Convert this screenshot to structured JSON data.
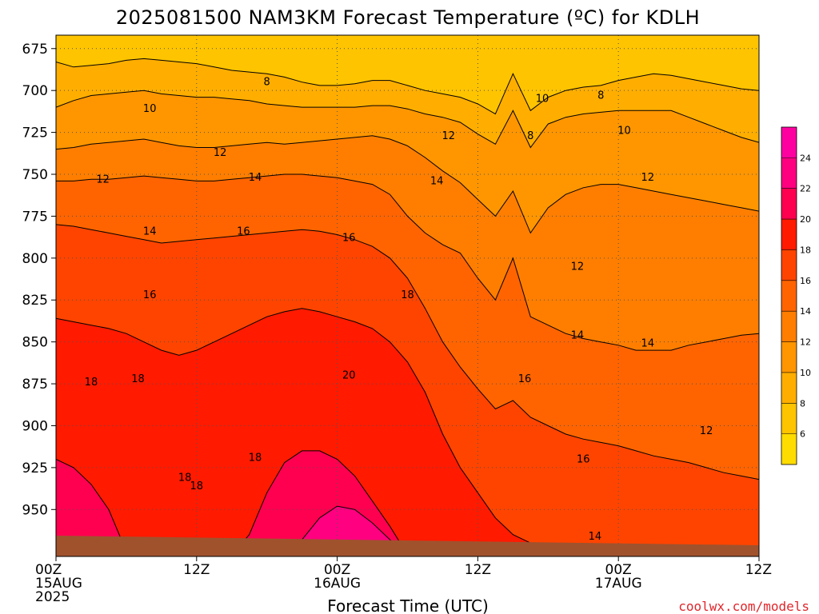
{
  "chart_data": {
    "type": "heatmap",
    "title": "2025081500 NAM3KM Forecast Temperature (ºC) for KDLH",
    "xlabel": "Forecast Time (UTC)",
    "ylabel": "",
    "x_ticks": [
      {
        "hour": 0,
        "lines": [
          "00Z",
          "15AUG",
          "2025"
        ]
      },
      {
        "hour": 12,
        "lines": [
          "12Z"
        ]
      },
      {
        "hour": 24,
        "lines": [
          "00Z",
          "16AUG"
        ]
      },
      {
        "hour": 36,
        "lines": [
          "12Z"
        ]
      },
      {
        "hour": 48,
        "lines": [
          "00Z",
          "17AUG"
        ]
      },
      {
        "hour": 60,
        "lines": [
          "12Z"
        ]
      }
    ],
    "xlim": [
      0,
      60
    ],
    "y_ticks": [
      675,
      700,
      725,
      750,
      775,
      800,
      825,
      850,
      875,
      900,
      925,
      950
    ],
    "ylim": [
      667,
      978
    ],
    "grid": "dotted",
    "colorbar": {
      "labels": [
        6,
        8,
        10,
        12,
        14,
        16,
        18,
        20,
        22,
        24
      ],
      "bins": [
        {
          "lo": 4,
          "hi": 6,
          "color": "#ffdc00"
        },
        {
          "lo": 6,
          "hi": 8,
          "color": "#ffc400"
        },
        {
          "lo": 8,
          "hi": 10,
          "color": "#ffae00"
        },
        {
          "lo": 10,
          "hi": 12,
          "color": "#ff9600"
        },
        {
          "lo": 12,
          "hi": 14,
          "color": "#ff7e00"
        },
        {
          "lo": 14,
          "hi": 16,
          "color": "#ff6400"
        },
        {
          "lo": 16,
          "hi": 18,
          "color": "#ff4400"
        },
        {
          "lo": 18,
          "hi": 20,
          "color": "#ff1a00"
        },
        {
          "lo": 20,
          "hi": 22,
          "color": "#ff0050"
        },
        {
          "lo": 22,
          "hi": 24,
          "color": "#ff0080"
        },
        {
          "lo": 24,
          "hi": 26,
          "color": "#ff00a0"
        }
      ]
    },
    "contours": [
      {
        "level": 8,
        "y": [
          683,
          686,
          685,
          684,
          682,
          681,
          682,
          683,
          684,
          686,
          688,
          689,
          690,
          692,
          695,
          697,
          697,
          696,
          694,
          694,
          697,
          700,
          702,
          704,
          708,
          714,
          690,
          712,
          704,
          700,
          698,
          697,
          694,
          692,
          690,
          691,
          693,
          695,
          697,
          699,
          700
        ]
      },
      {
        "level": 10,
        "y": [
          710,
          706,
          703,
          702,
          701,
          700,
          702,
          703,
          704,
          704,
          705,
          706,
          708,
          709,
          710,
          710,
          710,
          710,
          709,
          709,
          711,
          714,
          716,
          719,
          726,
          732,
          712,
          734,
          720,
          716,
          714,
          713,
          712,
          712,
          712,
          712,
          716,
          720,
          724,
          728,
          731
        ]
      },
      {
        "level": 12,
        "y": [
          735,
          734,
          732,
          731,
          730,
          729,
          731,
          733,
          734,
          734,
          733,
          732,
          731,
          732,
          731,
          730,
          729,
          728,
          727,
          729,
          733,
          740,
          748,
          755,
          765,
          775,
          760,
          785,
          770,
          762,
          758,
          756,
          756,
          758,
          760,
          762,
          764,
          766,
          768,
          770,
          772
        ]
      },
      {
        "level": 14,
        "y": [
          754,
          754,
          753,
          753,
          752,
          751,
          752,
          753,
          754,
          754,
          753,
          752,
          751,
          750,
          750,
          751,
          752,
          754,
          756,
          762,
          775,
          785,
          792,
          797,
          812,
          825,
          800,
          835,
          840,
          845,
          848,
          850,
          852,
          855,
          855,
          855,
          852,
          850,
          848,
          846,
          845
        ]
      },
      {
        "level": 16,
        "y": [
          780,
          781,
          783,
          785,
          787,
          789,
          791,
          790,
          789,
          788,
          787,
          786,
          785,
          784,
          783,
          784,
          786,
          789,
          793,
          800,
          812,
          830,
          850,
          865,
          878,
          890,
          885,
          895,
          900,
          905,
          908,
          910,
          912,
          915,
          918,
          920,
          922,
          925,
          928,
          930,
          932
        ]
      },
      {
        "level": 18,
        "y": [
          836,
          838,
          840,
          842,
          845,
          850,
          855,
          858,
          855,
          850,
          845,
          840,
          835,
          832,
          830,
          832,
          835,
          838,
          842,
          850,
          862,
          880,
          905,
          925,
          940,
          955,
          965,
          970,
          972,
          975,
          976,
          977,
          977,
          977,
          977,
          977,
          977,
          977,
          977,
          977,
          977
        ]
      },
      {
        "level": 20,
        "y": [
          920,
          925,
          935,
          950,
          975,
          977,
          977,
          977,
          977,
          977,
          977,
          965,
          940,
          922,
          915,
          915,
          920,
          930,
          945,
          960,
          977,
          977,
          977,
          977,
          977,
          977,
          977,
          977,
          977,
          977,
          977,
          977,
          977,
          977,
          977,
          977,
          977,
          977,
          977,
          977,
          977
        ]
      },
      {
        "level": 22,
        "y": [
          977,
          977,
          977,
          977,
          977,
          977,
          977,
          977,
          977,
          977,
          977,
          977,
          977,
          977,
          968,
          955,
          948,
          950,
          958,
          968,
          977,
          977,
          977,
          977,
          977,
          977,
          977,
          977,
          977,
          977,
          977,
          977,
          977,
          977,
          977,
          977,
          977,
          977,
          977,
          977,
          977
        ]
      }
    ],
    "contour_labels": [
      {
        "text": "8",
        "hour": 18,
        "p": 695
      },
      {
        "text": "8",
        "hour": 40.5,
        "p": 727
      },
      {
        "text": "8",
        "hour": 46.5,
        "p": 703
      },
      {
        "text": "10",
        "hour": 8,
        "p": 711
      },
      {
        "text": "10",
        "hour": 41.5,
        "p": 705
      },
      {
        "text": "10",
        "hour": 48.5,
        "p": 724
      },
      {
        "text": "12",
        "hour": 4,
        "p": 753
      },
      {
        "text": "12",
        "hour": 14,
        "p": 737
      },
      {
        "text": "12",
        "hour": 33.5,
        "p": 727
      },
      {
        "text": "12",
        "hour": 44.5,
        "p": 805
      },
      {
        "text": "12",
        "hour": 50.5,
        "p": 752
      },
      {
        "text": "12",
        "hour": 55.5,
        "p": 903
      },
      {
        "text": "14",
        "hour": 8,
        "p": 784
      },
      {
        "text": "14",
        "hour": 17,
        "p": 752
      },
      {
        "text": "14",
        "hour": 32.5,
        "p": 754
      },
      {
        "text": "14",
        "hour": 44.5,
        "p": 846
      },
      {
        "text": "14",
        "hour": 50.5,
        "p": 851
      },
      {
        "text": "14",
        "hour": 46,
        "p": 966
      },
      {
        "text": "16",
        "hour": 16,
        "p": 784
      },
      {
        "text": "16",
        "hour": 25,
        "p": 788
      },
      {
        "text": "16",
        "hour": 8,
        "p": 822
      },
      {
        "text": "16",
        "hour": 40,
        "p": 872
      },
      {
        "text": "16",
        "hour": 45,
        "p": 920
      },
      {
        "text": "18",
        "hour": 3,
        "p": 874
      },
      {
        "text": "18",
        "hour": 7,
        "p": 872
      },
      {
        "text": "18",
        "hour": 30,
        "p": 822
      },
      {
        "text": "18",
        "hour": 17,
        "p": 919
      },
      {
        "text": "18",
        "hour": 11,
        "p": 931
      },
      {
        "text": "18",
        "hour": 12,
        "p": 936
      },
      {
        "text": "20",
        "hour": 25,
        "p": 870
      }
    ]
  },
  "credit": "coolwx.com/models"
}
